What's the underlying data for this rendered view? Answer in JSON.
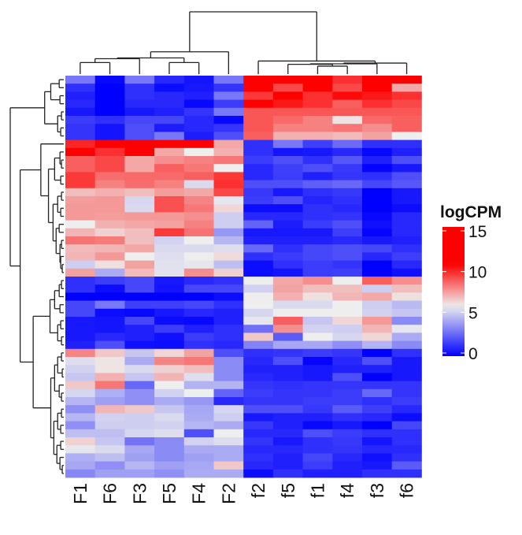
{
  "chart_data": {
    "type": "heatmap",
    "title": "",
    "columns": [
      "F1",
      "F6",
      "F3",
      "F5",
      "F4",
      "F2",
      "f2",
      "f5",
      "f1",
      "f4",
      "f3",
      "f6"
    ],
    "legend": {
      "title": "logCPM",
      "ticks": [
        0,
        5,
        10,
        15
      ],
      "range": [
        0,
        15.5
      ],
      "placement": "right"
    },
    "color_scale": [
      {
        "value": 0,
        "color": "#0000ff"
      },
      {
        "value": 6,
        "color": "#eeeeee"
      },
      {
        "value": 11,
        "color": "#ff0000"
      }
    ],
    "column_dendrogram": [
      81,
      [
        29,
        [
          21,
          [
            20,
            [
              15,
              0,
              1
            ],
            2
          ],
          [
            15,
            3,
            4
          ]
        ],
        5
      ],
      [
        17,
        6,
        [
          14.3,
          [
            13.3,
            [
              12.7,
              7,
              [
                10.3,
                8,
                9
              ]
            ],
            10
          ],
          11
        ]
      ]
    ],
    "row_dendrogram": [
      70,
      [
        25,
        [
          17,
          [
            6,
            0,
            1
          ],
          [
            5,
            2,
            3
          ]
        ],
        [
          8,
          [
            3,
            4,
            5
          ],
          [
            4,
            6,
            7
          ]
        ]
      ],
      [
        57,
        [
          30,
          8,
          [
            20,
            [
              12,
              [
                5,
                9,
                [
                  3,
                  10,
                  11
                ]
              ],
              [
                4,
                12,
                13
              ]
            ],
            [
              14,
              [
                8,
                [
                  3,
                  14,
                  15
                ],
                [
                  4,
                  16,
                  17
                ]
              ],
              [
                10,
                [
                  6,
                  18,
                  19
                ],
                [
                  5,
                  [
                    3,
                    20,
                    21
                  ],
                  [
                    4,
                    22,
                    [
                      2,
                      23,
                      24
                    ]
                  ]
                ]
              ]
            ]
          ]
        ],
        [
          40,
          [
            18,
            [
              12,
              [
                6,
                [
                  3,
                  25,
                  26
                ],
                27
              ],
              [
                5,
                28,
                29
              ]
            ],
            [
              8,
              [
                4,
                30,
                31
              ],
              [
                3,
                32,
                33
              ]
            ]
          ],
          [
            17,
            [
              12,
              [
                8,
                [
                  3,
                  34,
                  35
                ],
                [
                  2,
                  36,
                  37
                ]
              ],
              [
                6,
                38,
                [
                  3,
                  39,
                  40
                ]
              ]
            ],
            [
              13,
              [
                8,
                [
                  3,
                  41,
                  42
                ],
                [
                  4,
                  43,
                  44
                ]
              ],
              [
                9,
                [
                  4,
                  45,
                  46
                ],
                [
                  5,
                  47,
                  [
                    2,
                    48,
                    49
                  ]
                ]
              ]
            ]
          ]
        ]
      ]
    ],
    "values": [
      [
        3,
        0.2,
        3,
        1,
        0.5,
        3,
        13,
        13,
        12,
        10,
        13.5,
        11.5
      ],
      [
        1.2,
        0,
        1.2,
        0.3,
        0.6,
        1.3,
        12,
        9.5,
        11,
        9.5,
        13.5,
        7.5
      ],
      [
        0.8,
        0,
        1.2,
        1,
        0.8,
        3,
        9.8,
        11,
        10,
        10.8,
        10.5,
        10
      ],
      [
        1,
        0,
        1,
        1,
        0.2,
        1.5,
        11,
        10.5,
        10,
        9,
        10,
        9.5
      ],
      [
        0.6,
        0,
        0.6,
        0.8,
        1.3,
        3,
        9.2,
        9.2,
        9.2,
        9.2,
        9.2,
        9.2
      ],
      [
        1.5,
        1.2,
        1.8,
        1.8,
        1,
        0.2,
        9.2,
        8.8,
        8.3,
        6.2,
        8.8,
        9
      ],
      [
        1.3,
        0.5,
        2,
        0.7,
        1,
        1.3,
        9.2,
        8.3,
        8.3,
        8.5,
        8,
        9
      ],
      [
        1.3,
        0.5,
        2,
        3,
        0.7,
        2,
        9,
        7.3,
        7.3,
        7.1,
        7.6,
        6
      ],
      [
        10.2,
        11.5,
        12,
        12,
        12,
        7.5,
        1.2,
        3,
        1.6,
        2.7,
        1.2,
        1.2
      ],
      [
        11.5,
        10,
        11.5,
        7.5,
        6,
        7.3,
        1.2,
        0.5,
        0.6,
        1,
        0.2,
        0.8
      ],
      [
        9,
        9.5,
        7.5,
        8,
        8.3,
        8.5,
        1.5,
        2,
        1.2,
        2.2,
        0.8,
        2
      ],
      [
        9,
        9.5,
        7.5,
        9,
        8.5,
        6,
        1,
        1.6,
        2,
        1.4,
        0.1,
        0.6
      ],
      [
        9.8,
        8.7,
        8.8,
        8.8,
        9,
        9.8,
        1,
        1.5,
        0.8,
        1.3,
        1.2,
        2
      ],
      [
        9.8,
        8.3,
        8.7,
        8.3,
        5.5,
        10,
        2,
        2,
        2.4,
        2.6,
        1.8,
        2.2
      ],
      [
        7,
        7.3,
        7,
        7.7,
        7.5,
        9.5,
        1.4,
        0.6,
        1.2,
        1.4,
        0,
        0.6
      ],
      [
        7.7,
        7.8,
        5.4,
        9.3,
        8.2,
        5.8,
        1.5,
        2,
        0.9,
        1.2,
        0,
        0.6
      ],
      [
        7.8,
        7.8,
        5.5,
        9.3,
        8.5,
        6.5,
        0.3,
        0.3,
        1.2,
        1,
        0,
        0.3
      ],
      [
        7.8,
        7.7,
        7.8,
        7.8,
        8,
        5.2,
        1,
        1,
        1.2,
        1.3,
        0.2,
        1
      ],
      [
        6,
        7.3,
        7.5,
        7.6,
        8.3,
        5.2,
        2.5,
        0.7,
        1.5,
        2,
        0.4,
        1
      ],
      [
        7.2,
        6.6,
        7,
        9.8,
        8.6,
        3.8,
        0.6,
        0.6,
        0.6,
        1.6,
        0.1,
        1
      ],
      [
        8.6,
        8.4,
        7,
        5.3,
        6,
        4.6,
        0.8,
        0.8,
        0.8,
        1,
        0.6,
        0.8
      ],
      [
        7.1,
        7.2,
        7.5,
        5.5,
        5.5,
        5.6,
        2.6,
        1.2,
        1.8,
        2,
        1.8,
        1.2
      ],
      [
        7.2,
        7.8,
        6,
        5.6,
        6,
        6.4,
        1.2,
        1.5,
        1.8,
        2,
        1,
        1.6
      ],
      [
        5.2,
        6.3,
        7.6,
        5.7,
        5.8,
        4.8,
        0.3,
        1.2,
        1.5,
        1.3,
        0,
        1
      ],
      [
        7.6,
        4.3,
        7.1,
        5.7,
        8,
        6.6,
        0.3,
        0.5,
        1.5,
        1.6,
        0,
        0.4
      ],
      [
        1.2,
        1.5,
        1.8,
        0.6,
        1,
        1.2,
        6,
        7.5,
        8,
        6,
        9,
        8
      ],
      [
        1.2,
        0.3,
        1.8,
        0.5,
        1.8,
        1.8,
        5.3,
        7.6,
        7,
        7,
        5.2,
        7
      ],
      [
        0,
        0,
        0,
        0,
        0,
        0.3,
        6,
        7.3,
        6.3,
        7.2,
        7.5,
        6.3
      ],
      [
        1.8,
        3,
        1.6,
        1.6,
        1.8,
        1.2,
        6,
        5.5,
        5.5,
        6,
        5.2,
        4.7
      ],
      [
        1.8,
        0.3,
        0.2,
        0.6,
        1,
        0.8,
        5.4,
        6,
        6,
        6,
        5.3,
        5
      ],
      [
        0.6,
        0.5,
        1.8,
        0.3,
        0.2,
        0.8,
        5.8,
        9,
        5,
        6.5,
        7.8,
        3.5
      ],
      [
        0.6,
        0.5,
        0.8,
        1.5,
        0.8,
        1.2,
        2.8,
        8,
        5.3,
        5.2,
        7.2,
        5.8
      ],
      [
        0.6,
        1,
        0.8,
        0.4,
        1.5,
        1.2,
        6.8,
        2.3,
        6,
        5.4,
        6.5,
        4.3
      ],
      [
        0.8,
        2,
        0.4,
        0.3,
        1.2,
        1,
        3.3,
        4.2,
        4.2,
        3.6,
        4.5,
        3.5
      ],
      [
        8.2,
        6.8,
        5,
        6.5,
        7.6,
        2,
        1.2,
        1.3,
        1.5,
        1.3,
        0,
        1.2
      ],
      [
        5.6,
        6.2,
        4.3,
        8.2,
        8.5,
        3.5,
        1,
        2,
        0.1,
        1,
        2,
        0.6
      ],
      [
        5.3,
        6.2,
        5.5,
        6.6,
        7,
        3.5,
        0.8,
        0.8,
        0.6,
        0.8,
        0.8,
        0.6
      ],
      [
        5,
        7.3,
        5,
        7.2,
        5.6,
        3.5,
        1,
        0.8,
        0.6,
        2,
        0,
        0.6
      ],
      [
        6.8,
        8.5,
        2.6,
        6,
        4.5,
        4.5,
        1.3,
        1.2,
        1.3,
        1.3,
        1.3,
        1.3
      ],
      [
        5.4,
        4.4,
        3.6,
        5.3,
        6,
        2.5,
        1.5,
        1.3,
        1.3,
        1.5,
        2.6,
        1.3
      ],
      [
        4.6,
        4,
        3.6,
        4.3,
        3.8,
        1,
        1.3,
        1.3,
        1.5,
        1.5,
        1.2,
        1.5
      ],
      [
        3.6,
        7.2,
        6.8,
        5,
        4.2,
        5.4,
        2,
        2,
        1.4,
        2.3,
        1.6,
        1
      ],
      [
        4.6,
        5.3,
        5.2,
        5.5,
        4.3,
        5.2,
        0.6,
        0.8,
        0.8,
        1.2,
        1,
        0.3
      ],
      [
        3.6,
        5.2,
        5.2,
        5.3,
        4.6,
        4.3,
        1.4,
        0.8,
        0.2,
        0.6,
        0,
        1.8
      ],
      [
        4.8,
        4.8,
        5.4,
        5.6,
        2,
        6,
        1,
        1,
        2,
        1.5,
        1.2,
        1.2
      ],
      [
        6.6,
        5,
        2.9,
        3.5,
        5.3,
        5.6,
        1.3,
        0.6,
        1.2,
        1.4,
        0.5,
        1.2
      ],
      [
        5.8,
        5.5,
        4.2,
        3.5,
        4.3,
        4.3,
        1,
        1,
        1.2,
        1.3,
        1,
        1
      ],
      [
        4.4,
        4.8,
        4,
        3.5,
        4,
        4.3,
        1.2,
        0.8,
        1.8,
        1,
        0.4,
        1.2
      ],
      [
        4.2,
        3.6,
        4.6,
        4,
        4.2,
        6.8,
        1,
        0.8,
        1.5,
        0.8,
        0.6,
        2.3
      ],
      [
        3.4,
        4,
        4,
        3.6,
        4.3,
        4.3,
        0.3,
        1.2,
        0.8,
        0.8,
        1.2,
        1.2
      ]
    ]
  }
}
